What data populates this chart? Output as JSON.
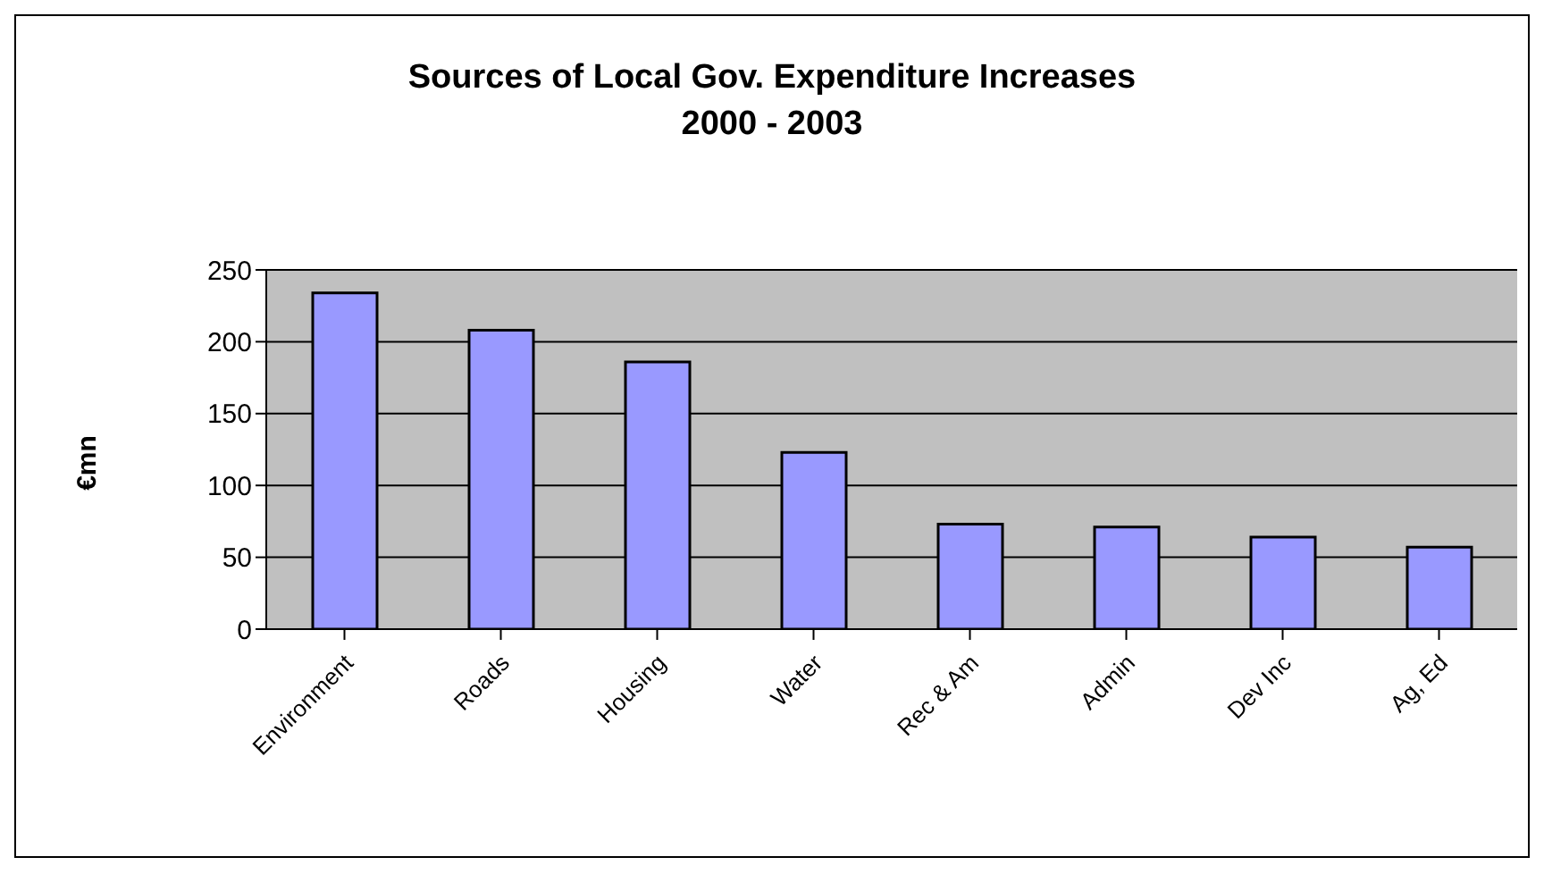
{
  "chart_data": {
    "type": "bar",
    "title": "Sources of Local Gov. Expenditure Increases\n2000 - 2003",
    "ylabel": "€mn",
    "categories": [
      "Environment",
      "Roads",
      "Housing",
      "Water",
      "Rec & Am",
      "Admin",
      "Dev Inc",
      "Ag, Ed"
    ],
    "values": [
      234,
      208,
      186,
      123,
      73,
      71,
      64,
      57
    ],
    "color": "#9999ff",
    "ylim": [
      0,
      250
    ],
    "yticks": [
      0,
      50,
      100,
      150,
      200,
      250
    ],
    "grid": "y",
    "legend": false
  }
}
